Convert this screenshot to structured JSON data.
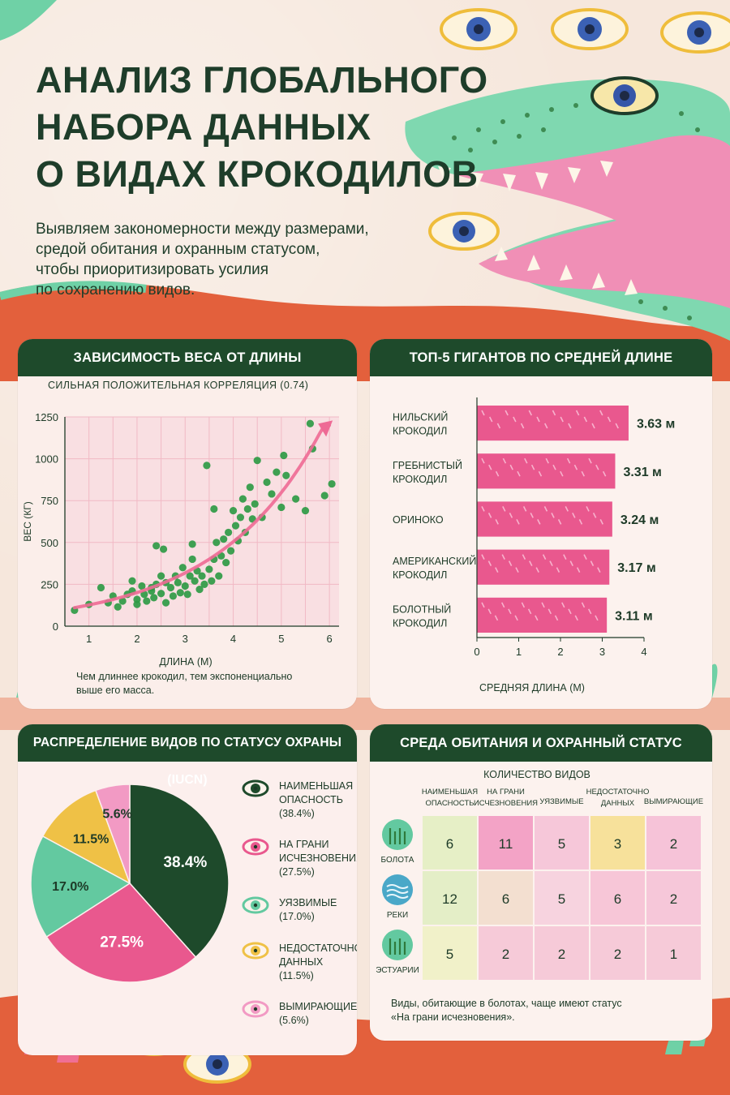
{
  "header": {
    "title_lines": [
      "АНАЛИЗ ГЛОБАЛЬНОГО",
      "НАБОРА ДАННЫХ",
      "О ВИДАХ КРОКОДИЛОВ"
    ],
    "subtitle_lines": [
      "Выявляем закономерности между размерами,",
      "средой обитания и охранным статусом,",
      "чтобы приоритизировать усилия",
      "по сохранению видов."
    ]
  },
  "colors": {
    "dark_green": "#1e4a2b",
    "pink": "#e9588e",
    "mint": "#63c9a0",
    "yellow": "#efc146",
    "light_pink": "#f29ac4",
    "dot_green": "#2f9a45",
    "trend": "#ee6a95"
  },
  "scatter": {
    "header": "ЗАВИСИМОСТЬ ВЕСА ОТ ДЛИНЫ",
    "subtitle": "СИЛЬНАЯ ПОЛОЖИТЕЛЬНАЯ КОРРЕЛЯЦИЯ (0.74)",
    "note_lines": [
      "Чем длиннее крокодил, тем экспоненциально",
      "выше его масса."
    ]
  },
  "bars": {
    "header": "ТОП-5 ГИГАНТОВ ПО СРЕДНЕЙ ДЛИНЕ",
    "unit": "м"
  },
  "pie": {
    "header": "РАСПРЕДЕЛЕНИЕ ВИДОВ ПО СТАТУСУ ОХРАНЫ (IUCN)",
    "icons": [
      "eye-icon-dark",
      "eye-icon-pink",
      "eye-icon-mint",
      "eye-icon-yellow",
      "eye-icon-light-pink"
    ]
  },
  "heatmap": {
    "header": "СРЕДА ОБИТАНИЯ И ОХРАННЫЙ СТАТУС",
    "note_lines": [
      "Виды, обитающие в болотах, чаще имеют статус",
      "«На грани исчезновения»."
    ],
    "row_icons": [
      "marsh-icon",
      "river-icon",
      "estuary-icon"
    ]
  },
  "chart_data": [
    {
      "type": "scatter",
      "title": "ЗАВИСИМОСТЬ ВЕСА ОТ ДЛИНЫ",
      "subtitle": "СИЛЬНАЯ ПОЛОЖИТЕЛЬНАЯ КОРРЕЛЯЦИЯ (0.74)",
      "xlabel": "ДЛИНА (М)",
      "ylabel": "ВЕС (КГ)",
      "xlim": [
        0.5,
        6.2
      ],
      "ylim": [
        0,
        1250
      ],
      "xticks": [
        1,
        2,
        3,
        4,
        5,
        6
      ],
      "yticks": [
        0,
        250,
        500,
        750,
        1000,
        1250
      ],
      "grid": true,
      "trend": "exponential",
      "points": [
        [
          0.7,
          95
        ],
        [
          1.0,
          130
        ],
        [
          1.25,
          230
        ],
        [
          1.4,
          140
        ],
        [
          1.5,
          180
        ],
        [
          1.6,
          115
        ],
        [
          1.7,
          150
        ],
        [
          1.8,
          190
        ],
        [
          1.9,
          210
        ],
        [
          2.0,
          160
        ],
        [
          2.0,
          130
        ],
        [
          2.1,
          240
        ],
        [
          2.15,
          190
        ],
        [
          2.2,
          150
        ],
        [
          2.3,
          210
        ],
        [
          2.35,
          170
        ],
        [
          2.4,
          250
        ],
        [
          2.5,
          195
        ],
        [
          2.5,
          300
        ],
        [
          2.6,
          140
        ],
        [
          2.6,
          260
        ],
        [
          2.7,
          230
        ],
        [
          2.75,
          180
        ],
        [
          2.8,
          300
        ],
        [
          2.85,
          260
        ],
        [
          2.9,
          200
        ],
        [
          2.95,
          350
        ],
        [
          3.0,
          240
        ],
        [
          3.05,
          190
        ],
        [
          3.1,
          300
        ],
        [
          3.15,
          400
        ],
        [
          3.15,
          490
        ],
        [
          3.2,
          270
        ],
        [
          3.25,
          330
        ],
        [
          3.3,
          220
        ],
        [
          3.35,
          300
        ],
        [
          3.4,
          250
        ],
        [
          3.45,
          960
        ],
        [
          3.5,
          340
        ],
        [
          3.55,
          270
        ],
        [
          3.6,
          400
        ],
        [
          3.65,
          500
        ],
        [
          3.7,
          300
        ],
        [
          3.75,
          420
        ],
        [
          3.8,
          520
        ],
        [
          3.85,
          380
        ],
        [
          3.9,
          560
        ],
        [
          3.95,
          450
        ],
        [
          4.0,
          690
        ],
        [
          4.05,
          600
        ],
        [
          4.1,
          510
        ],
        [
          4.15,
          650
        ],
        [
          4.2,
          760
        ],
        [
          4.25,
          560
        ],
        [
          4.3,
          700
        ],
        [
          4.35,
          830
        ],
        [
          4.4,
          640
        ],
        [
          4.45,
          730
        ],
        [
          4.5,
          990
        ],
        [
          4.6,
          650
        ],
        [
          4.7,
          860
        ],
        [
          4.8,
          790
        ],
        [
          4.9,
          920
        ],
        [
          5.0,
          710
        ],
        [
          5.05,
          1020
        ],
        [
          5.1,
          900
        ],
        [
          5.3,
          760
        ],
        [
          5.5,
          690
        ],
        [
          5.6,
          1210
        ],
        [
          5.65,
          1060
        ],
        [
          5.9,
          780
        ],
        [
          6.05,
          850
        ],
        [
          2.4,
          480
        ],
        [
          2.55,
          460
        ],
        [
          2.3,
          230
        ],
        [
          1.9,
          270
        ],
        [
          3.6,
          700
        ]
      ]
    },
    {
      "type": "bar",
      "title": "ТОП-5 ГИГАНТОВ ПО СРЕДНЕЙ ДЛИНЕ",
      "xlabel": "СРЕДНЯЯ ДЛИНА (М)",
      "xlim": [
        0,
        4
      ],
      "xticks": [
        0,
        1,
        2,
        3,
        4
      ],
      "orientation": "horizontal",
      "categories": [
        [
          "НИЛЬСКИЙ",
          "КРОКОДИЛ"
        ],
        [
          "ГРЕБНИСТЫЙ",
          "КРОКОДИЛ"
        ],
        [
          "ОРИНОКО"
        ],
        [
          "АМЕРИКАНСКИЙ",
          "КРОКОДИЛ"
        ],
        [
          "БОЛОТНЫЙ",
          "КРОКОДИЛ"
        ]
      ],
      "values": [
        3.63,
        3.31,
        3.24,
        3.17,
        3.11
      ],
      "value_labels": [
        "3.63 м",
        "3.31 м",
        "3.24 м",
        "3.17 м",
        "3.11 м"
      ]
    },
    {
      "type": "pie",
      "title": "РАСПРЕДЕЛЕНИЕ ВИДОВ ПО СТАТУСУ ОХРАНЫ (IUCN)",
      "slices": [
        {
          "name": "НАИМЕНЬШАЯ ОПАСНОСТЬ",
          "legend_lines": [
            "НАИМЕНЬШАЯ",
            "ОПАСНОСТЬ",
            "(38.4%)"
          ],
          "value": 38.4,
          "label": "38.4%",
          "color": "#1e4a2b",
          "label_color": "#ffffff"
        },
        {
          "name": "НА ГРАНИ ИСЧЕЗНОВЕНИЯ",
          "legend_lines": [
            "НА ГРАНИ",
            "ИСЧЕЗНОВЕНИЯ",
            "(27.5%)"
          ],
          "value": 27.5,
          "label": "27.5%",
          "color": "#e9588e",
          "label_color": "#ffffff"
        },
        {
          "name": "УЯЗВИМЫЕ",
          "legend_lines": [
            "УЯЗВИМЫЕ",
            "(17.0%)"
          ],
          "value": 17.0,
          "label": "17.0%",
          "color": "#63c9a0",
          "label_color": "#1d3a27"
        },
        {
          "name": "НЕДОСТАТОЧНО ДАННЫХ",
          "legend_lines": [
            "НЕДОСТАТОЧНО",
            "ДАННЫХ",
            "(11.5%)"
          ],
          "value": 11.5,
          "label": "11.5%",
          "color": "#efc146",
          "label_color": "#1d3a27"
        },
        {
          "name": "ВЫМИРАЮЩИЕ",
          "legend_lines": [
            "ВЫМИРАЮЩИЕ",
            "(5.6%)"
          ],
          "value": 5.6,
          "label": "5.6%",
          "color": "#f29ac4",
          "label_color": "#1d3a27"
        }
      ],
      "legend": "right"
    },
    {
      "type": "heatmap",
      "title": "СРЕДА ОБИТАНИЯ И ОХРАННЫЙ СТАТУС",
      "subtitle": "КОЛИЧЕСТВО ВИДОВ",
      "columns": [
        [
          "НАИМЕНЬШАЯ",
          "ОПАСНОСТЬ"
        ],
        [
          "НА ГРАНИ",
          "ИСЧЕЗНОВЕНИЯ"
        ],
        [
          "УЯЗВИМЫЕ"
        ],
        [
          "НЕДОСТАТОЧНО",
          "ДАННЫХ"
        ],
        [
          "ВЫМИРАЮЩИЕ"
        ]
      ],
      "rows": [
        "БОЛОТА",
        "РЕКИ",
        "ЭСТУАРИИ"
      ],
      "values": [
        [
          6,
          11,
          5,
          3,
          2
        ],
        [
          12,
          6,
          5,
          6,
          2
        ],
        [
          5,
          2,
          2,
          2,
          1
        ]
      ],
      "cell_colors": [
        [
          "#e6efc6",
          "#f3a3c6",
          "#f6c7d9",
          "#f7e19b",
          "#f6c3d8"
        ],
        [
          "#e4eec7",
          "#f3dfd0",
          "#f7d3df",
          "#f7c6d7",
          "#f6c7d9"
        ],
        [
          "#f1f1c9",
          "#f6cad8",
          "#f6cad8",
          "#f6cad8",
          "#f6cad8"
        ]
      ]
    }
  ]
}
